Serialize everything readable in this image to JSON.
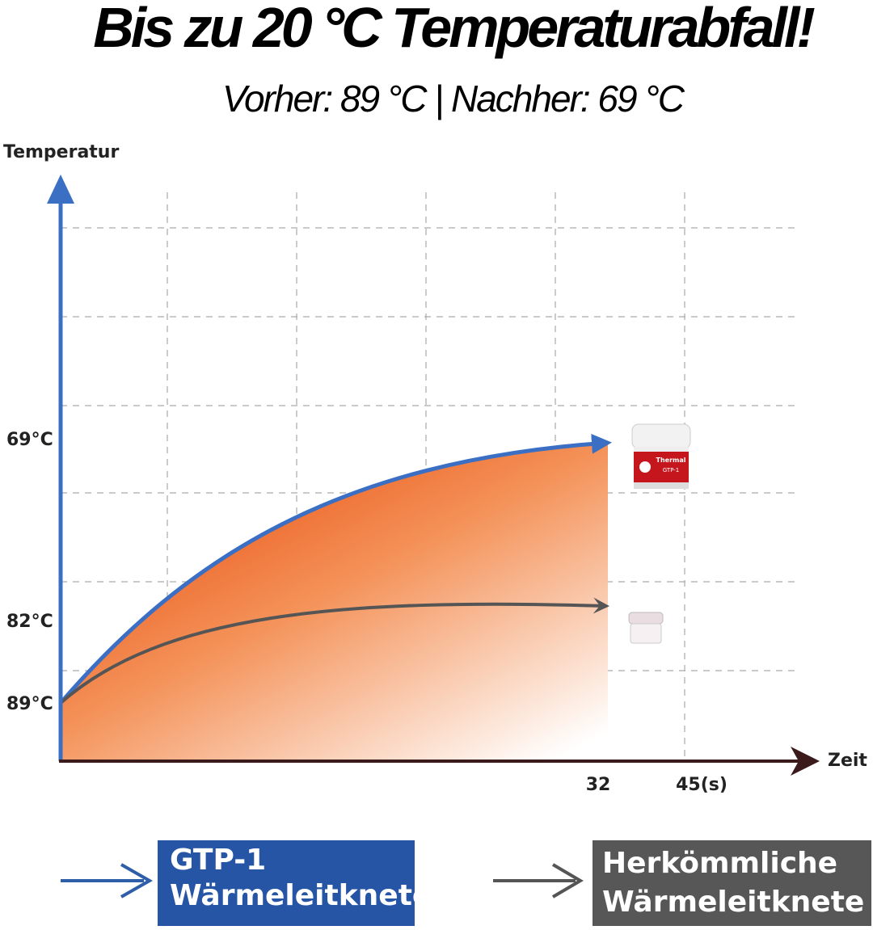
{
  "header": {
    "title": "Bis zu 20 °C Temperaturabfall!",
    "subtitle": "Vorher: 89 °C | Nachher: 69 °C"
  },
  "diagram": {
    "y_axis_label": "Temperatur",
    "x_axis_label": "Zeit",
    "y_labels": [
      "69°C",
      "82°C",
      "89°C"
    ],
    "x_labels": [
      "32",
      "45(s)"
    ],
    "product_jar": {
      "brand": "Thermal",
      "model": "GTP-1"
    }
  },
  "legend": [
    {
      "lines": [
        "GTP-1",
        "Wärmeleitknete"
      ]
    },
    {
      "lines": [
        "Herkömmliche",
        "Wärmeleitknete"
      ]
    }
  ]
}
